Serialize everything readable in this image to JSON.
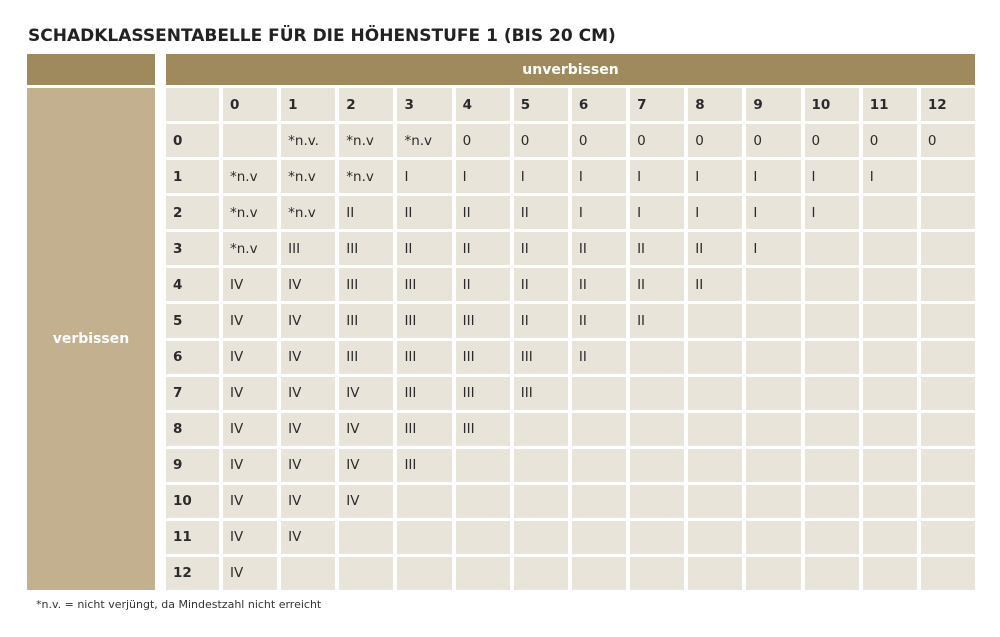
{
  "title": "SCHADKLASSENTABELLE FÜR DIE HÖHENSTUFE 1 (BIS 20 CM)",
  "column_header": "unverbissen",
  "row_header": "verbissen",
  "table": {
    "columns": [
      0,
      1,
      2,
      3,
      4,
      5,
      6,
      7,
      8,
      9,
      10,
      11,
      12
    ],
    "rows": [
      {
        "label": 0,
        "cells": [
          null,
          "*n.v.",
          "*n.v",
          "*n.v",
          "0",
          "0",
          "0",
          "0",
          "0",
          "0",
          "0",
          "0",
          "0"
        ]
      },
      {
        "label": 1,
        "cells": [
          "*n.v",
          "*n.v",
          "*n.v",
          "I",
          "I",
          "I",
          "I",
          "I",
          "I",
          "I",
          "I",
          "I"
        ]
      },
      {
        "label": 2,
        "cells": [
          "*n.v",
          "*n.v",
          "II",
          "II",
          "II",
          "II",
          "I",
          "I",
          "I",
          "I",
          "I"
        ]
      },
      {
        "label": 3,
        "cells": [
          "*n.v",
          "III",
          "III",
          "II",
          "II",
          "II",
          "II",
          "II",
          "II",
          "I"
        ]
      },
      {
        "label": 4,
        "cells": [
          "IV",
          "IV",
          "III",
          "III",
          "II",
          "II",
          "II",
          "II",
          "II"
        ]
      },
      {
        "label": 5,
        "cells": [
          "IV",
          "IV",
          "III",
          "III",
          "III",
          "II",
          "II",
          "II"
        ]
      },
      {
        "label": 6,
        "cells": [
          "IV",
          "IV",
          "III",
          "III",
          "III",
          "III",
          "II"
        ]
      },
      {
        "label": 7,
        "cells": [
          "IV",
          "IV",
          "IV",
          "III",
          "III",
          "III"
        ]
      },
      {
        "label": 8,
        "cells": [
          "IV",
          "IV",
          "IV",
          "III",
          "III"
        ]
      },
      {
        "label": 9,
        "cells": [
          "IV",
          "IV",
          "IV",
          "III"
        ]
      },
      {
        "label": 10,
        "cells": [
          "IV",
          "IV",
          "IV"
        ]
      },
      {
        "label": 11,
        "cells": [
          "IV",
          "IV"
        ]
      },
      {
        "label": 12,
        "cells": [
          "IV"
        ]
      }
    ]
  },
  "footnote": "*n.v. = nicht verjüngt, da Mindestzahl nicht erreicht"
}
